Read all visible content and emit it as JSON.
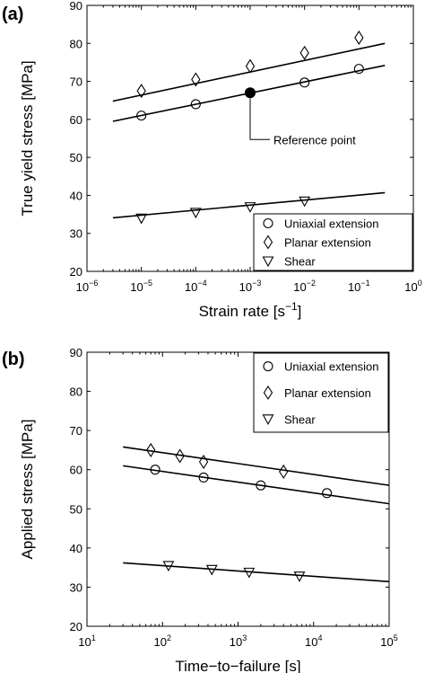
{
  "chart_data": [
    {
      "panel": "(a)",
      "type": "scatter",
      "xscale": "log",
      "xlim": [
        1e-06,
        1
      ],
      "ylim": [
        20,
        90
      ],
      "xlabel": "Strain rate [s",
      "xlabel_sup": "−1",
      "xlabel_end": "]",
      "ylabel": "True yield stress [MPa]",
      "xticks": [
        {
          "value": 1e-06,
          "base": "10",
          "exp": "−6"
        },
        {
          "value": 1e-05,
          "base": "10",
          "exp": "−5"
        },
        {
          "value": 0.0001,
          "base": "10",
          "exp": "−4"
        },
        {
          "value": 0.001,
          "base": "10",
          "exp": "−3"
        },
        {
          "value": 0.01,
          "base": "10",
          "exp": "−2"
        },
        {
          "value": 0.1,
          "base": "10",
          "exp": "−1"
        },
        {
          "value": 1,
          "base": "10",
          "exp": "0"
        }
      ],
      "yticks": [
        20,
        30,
        40,
        50,
        60,
        70,
        80,
        90
      ],
      "legend_position": "lower-right",
      "series": [
        {
          "name": "Uniaxial extension",
          "marker": "circle",
          "x": [
            1e-05,
            0.0001,
            0.01,
            0.1
          ],
          "y": [
            61,
            64,
            69.7,
            73.3
          ],
          "fit_x": [
            3e-06,
            0.3
          ],
          "fit_y": [
            59.5,
            74.2
          ]
        },
        {
          "name": "Planar extension",
          "marker": "diamond",
          "x": [
            1e-05,
            0.0001,
            0.001,
            0.01,
            0.1
          ],
          "y": [
            67.5,
            70.5,
            74,
            77.5,
            81.5
          ],
          "fit_x": [
            3e-06,
            0.3
          ],
          "fit_y": [
            64.8,
            80
          ]
        },
        {
          "name": "Shear",
          "marker": "triangle-down",
          "x": [
            1e-05,
            0.0001,
            0.001,
            0.01
          ],
          "y": [
            34,
            35.5,
            37,
            38.5
          ],
          "fit_x": [
            3e-06,
            0.3
          ],
          "fit_y": [
            34.1,
            40.7
          ]
        }
      ],
      "annotations": [
        {
          "text": "Reference point",
          "x": 0.001,
          "y": 67,
          "marker": "filled-circle"
        }
      ]
    },
    {
      "panel": "(b)",
      "type": "scatter",
      "xscale": "log",
      "xlim": [
        10,
        100000
      ],
      "ylim": [
        20,
        90
      ],
      "xlabel": "Time−to−failure [s]",
      "ylabel": "Applied stress [MPa]",
      "xticks": [
        {
          "value": 10,
          "base": "10",
          "exp": "1"
        },
        {
          "value": 100,
          "base": "10",
          "exp": "2"
        },
        {
          "value": 1000,
          "base": "10",
          "exp": "3"
        },
        {
          "value": 10000,
          "base": "10",
          "exp": "4"
        },
        {
          "value": 100000,
          "base": "10",
          "exp": "5"
        }
      ],
      "yticks": [
        20,
        30,
        40,
        50,
        60,
        70,
        80,
        90
      ],
      "legend_position": "top-right",
      "series": [
        {
          "name": "Uniaxial extension",
          "marker": "circle",
          "x": [
            80,
            350,
            2000,
            15000
          ],
          "y": [
            60,
            58,
            56,
            54
          ],
          "fit_x": [
            30,
            100000
          ],
          "fit_y": [
            61,
            51.3
          ]
        },
        {
          "name": "Planar extension",
          "marker": "diamond",
          "x": [
            70,
            170,
            350,
            4000
          ],
          "y": [
            65,
            63.5,
            62,
            59.5
          ],
          "fit_x": [
            30,
            100000
          ],
          "fit_y": [
            65.8,
            56
          ]
        },
        {
          "name": "Shear",
          "marker": "triangle-down",
          "x": [
            120,
            450,
            1400,
            6500
          ],
          "y": [
            35.5,
            34.5,
            33.8,
            32.8
          ],
          "fit_x": [
            30,
            100000
          ],
          "fit_y": [
            36.2,
            31.4
          ]
        }
      ]
    }
  ]
}
